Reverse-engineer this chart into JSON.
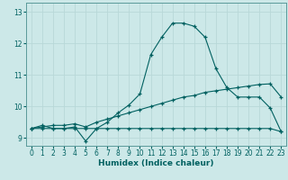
{
  "xlabel": "Humidex (Indice chaleur)",
  "background_color": "#cce8e8",
  "grid_color": "#b8d8d8",
  "line_color": "#006060",
  "xlim": [
    -0.5,
    23.5
  ],
  "ylim": [
    8.75,
    13.3
  ],
  "yticks": [
    9,
    10,
    11,
    12,
    13
  ],
  "xticks": [
    0,
    1,
    2,
    3,
    4,
    5,
    6,
    7,
    8,
    9,
    10,
    11,
    12,
    13,
    14,
    15,
    16,
    17,
    18,
    19,
    20,
    21,
    22,
    23
  ],
  "line1_x": [
    0,
    1,
    2,
    3,
    4,
    5,
    6,
    7,
    8,
    9,
    10,
    11,
    12,
    13,
    14,
    15,
    16,
    17,
    18,
    19,
    20,
    21,
    22,
    23
  ],
  "line1_y": [
    9.3,
    9.4,
    9.3,
    9.3,
    9.35,
    8.9,
    9.3,
    9.5,
    9.8,
    10.05,
    10.4,
    11.65,
    12.2,
    12.65,
    12.65,
    12.55,
    12.2,
    11.2,
    10.6,
    10.3,
    10.3,
    10.3,
    9.95,
    9.2
  ],
  "line2_x": [
    0,
    1,
    2,
    3,
    4,
    5,
    6,
    7,
    8,
    9,
    10,
    11,
    12,
    13,
    14,
    15,
    16,
    17,
    18,
    19,
    20,
    21,
    22,
    23
  ],
  "line2_y": [
    9.3,
    9.3,
    9.3,
    9.3,
    9.3,
    9.3,
    9.3,
    9.3,
    9.3,
    9.3,
    9.3,
    9.3,
    9.3,
    9.3,
    9.3,
    9.3,
    9.3,
    9.3,
    9.3,
    9.3,
    9.3,
    9.3,
    9.3,
    9.2
  ],
  "line3_x": [
    0,
    1,
    2,
    3,
    4,
    5,
    6,
    7,
    8,
    9,
    10,
    11,
    12,
    13,
    14,
    15,
    16,
    17,
    18,
    19,
    20,
    21,
    22,
    23
  ],
  "line3_y": [
    9.3,
    9.35,
    9.4,
    9.4,
    9.45,
    9.35,
    9.5,
    9.6,
    9.7,
    9.8,
    9.9,
    10.0,
    10.1,
    10.2,
    10.3,
    10.35,
    10.45,
    10.5,
    10.55,
    10.6,
    10.65,
    10.7,
    10.72,
    10.3
  ]
}
